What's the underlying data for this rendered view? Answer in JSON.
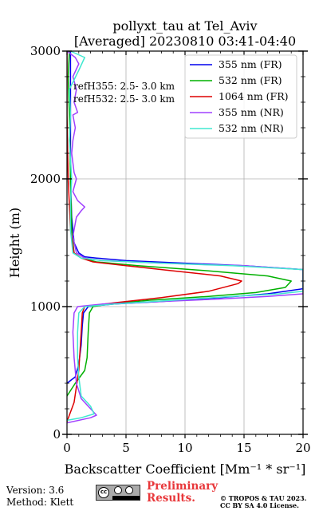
{
  "chart_data": {
    "type": "line",
    "title": "pollyxt_tau at Tel_Aviv",
    "subtitle": "[Averaged] 20230810 03:41-04:40",
    "xlabel": "Backscatter Coefficient [Mm⁻¹ * sr⁻¹]",
    "ylabel": "Height (m)",
    "xlim": [
      0,
      20
    ],
    "ylim": [
      0,
      3000
    ],
    "xticks": [
      0,
      5,
      10,
      15,
      20
    ],
    "yticks": [
      0,
      1000,
      2000,
      3000
    ],
    "grid": true,
    "legend_position": "top-right",
    "annotations": [
      "refH355:  2.5- 3.0 km",
      "refH532:  2.5- 3.0 km"
    ],
    "series": [
      {
        "name": "355 nm (FR)",
        "color": "#0000ee",
        "points": [
          [
            0.0,
            400
          ],
          [
            0.7,
            450
          ],
          [
            1.0,
            550
          ],
          [
            1.2,
            700
          ],
          [
            1.3,
            850
          ],
          [
            1.4,
            950
          ],
          [
            1.8,
            1000
          ],
          [
            4.0,
            1020
          ],
          [
            8.0,
            1040
          ],
          [
            13.0,
            1070
          ],
          [
            17.0,
            1100
          ],
          [
            20.0,
            1140
          ],
          [
            20.0,
            1290
          ],
          [
            15.0,
            1320
          ],
          [
            10.0,
            1340
          ],
          [
            5.0,
            1360
          ],
          [
            2.5,
            1380
          ],
          [
            1.5,
            1390
          ],
          [
            1.0,
            1420
          ],
          [
            0.6,
            1500
          ],
          [
            0.4,
            1700
          ],
          [
            0.3,
            2000
          ],
          [
            0.3,
            2500
          ],
          [
            0.3,
            3000
          ]
        ]
      },
      {
        "name": "532 nm (FR)",
        "color": "#00b000",
        "points": [
          [
            0.0,
            300
          ],
          [
            0.7,
            400
          ],
          [
            1.5,
            500
          ],
          [
            1.7,
            600
          ],
          [
            1.8,
            800
          ],
          [
            1.9,
            950
          ],
          [
            2.2,
            1000
          ],
          [
            3.5,
            1020
          ],
          [
            7.0,
            1050
          ],
          [
            12.0,
            1080
          ],
          [
            16.0,
            1110
          ],
          [
            18.5,
            1150
          ],
          [
            19.0,
            1200
          ],
          [
            17.0,
            1240
          ],
          [
            12.0,
            1280
          ],
          [
            6.0,
            1320
          ],
          [
            2.5,
            1350
          ],
          [
            1.2,
            1380
          ],
          [
            0.6,
            1420
          ],
          [
            0.4,
            1600
          ],
          [
            0.3,
            2000
          ],
          [
            0.2,
            2500
          ],
          [
            0.1,
            2800
          ],
          [
            0.2,
            3000
          ]
        ]
      },
      {
        "name": "1064 nm (FR)",
        "color": "#dd0000",
        "points": [
          [
            0.0,
            100
          ],
          [
            0.6,
            250
          ],
          [
            1.0,
            500
          ],
          [
            1.2,
            800
          ],
          [
            1.3,
            950
          ],
          [
            1.5,
            1000
          ],
          [
            4.0,
            1030
          ],
          [
            8.0,
            1070
          ],
          [
            12.0,
            1120
          ],
          [
            14.5,
            1180
          ],
          [
            14.8,
            1200
          ],
          [
            13.0,
            1240
          ],
          [
            9.0,
            1280
          ],
          [
            5.0,
            1320
          ],
          [
            2.2,
            1350
          ],
          [
            1.2,
            1380
          ],
          [
            0.6,
            1420
          ],
          [
            0.3,
            1600
          ],
          [
            0.1,
            2000
          ],
          [
            0.0,
            2500
          ],
          [
            0.0,
            3000
          ]
        ]
      },
      {
        "name": "355 nm (NR)",
        "color": "#a040ff",
        "points": [
          [
            0.0,
            90
          ],
          [
            2.0,
            130
          ],
          [
            2.5,
            150
          ],
          [
            2.0,
            200
          ],
          [
            1.2,
            280
          ],
          [
            0.8,
            400
          ],
          [
            0.6,
            600
          ],
          [
            0.5,
            800
          ],
          [
            0.6,
            950
          ],
          [
            0.9,
            1000
          ],
          [
            3.0,
            1020
          ],
          [
            8.0,
            1040
          ],
          [
            13.0,
            1060
          ],
          [
            17.0,
            1080
          ],
          [
            20.0,
            1100
          ],
          [
            20.0,
            1290
          ],
          [
            15.0,
            1320
          ],
          [
            8.0,
            1340
          ],
          [
            3.0,
            1360
          ],
          [
            1.5,
            1380
          ],
          [
            0.8,
            1420
          ],
          [
            0.5,
            1550
          ],
          [
            0.8,
            1700
          ],
          [
            1.2,
            1750
          ],
          [
            1.5,
            1780
          ],
          [
            0.9,
            1830
          ],
          [
            0.5,
            1900
          ],
          [
            0.8,
            2000
          ],
          [
            0.6,
            2050
          ],
          [
            0.4,
            2200
          ],
          [
            0.5,
            2300
          ],
          [
            0.7,
            2400
          ],
          [
            0.5,
            2500
          ],
          [
            0.9,
            2520
          ],
          [
            0.6,
            2600
          ],
          [
            0.8,
            2700
          ],
          [
            0.5,
            2800
          ],
          [
            1.0,
            2900
          ],
          [
            0.7,
            2950
          ],
          [
            0.0,
            3000
          ]
        ]
      },
      {
        "name": "532 nm (NR)",
        "color": "#40e8d0",
        "points": [
          [
            0.0,
            110
          ],
          [
            1.2,
            130
          ],
          [
            2.3,
            160
          ],
          [
            2.0,
            220
          ],
          [
            1.2,
            300
          ],
          [
            1.0,
            450
          ],
          [
            0.9,
            600
          ],
          [
            0.9,
            800
          ],
          [
            1.0,
            950
          ],
          [
            1.5,
            1000
          ],
          [
            4.0,
            1020
          ],
          [
            9.0,
            1050
          ],
          [
            14.0,
            1080
          ],
          [
            18.0,
            1100
          ],
          [
            20.0,
            1120
          ],
          [
            20.0,
            1290
          ],
          [
            14.0,
            1320
          ],
          [
            8.0,
            1340
          ],
          [
            3.0,
            1360
          ],
          [
            1.2,
            1380
          ],
          [
            0.5,
            1420
          ],
          [
            0.3,
            1600
          ],
          [
            0.3,
            1800
          ],
          [
            0.4,
            2000
          ],
          [
            0.2,
            2300
          ],
          [
            0.3,
            2500
          ],
          [
            0.2,
            2700
          ],
          [
            1.0,
            2850
          ],
          [
            1.5,
            2950
          ],
          [
            0.3,
            3000
          ]
        ]
      }
    ]
  },
  "footer": {
    "version": "Version: 3.6",
    "method": "Method: Klett",
    "preliminary_line1": "Preliminary",
    "preliminary_line2": "Results.",
    "copyright_line1": "© TROPOS & TAU 2023.",
    "copyright_line2": "CC BY SA 4.0 License.",
    "license_logo_text": "cc BY SA"
  }
}
